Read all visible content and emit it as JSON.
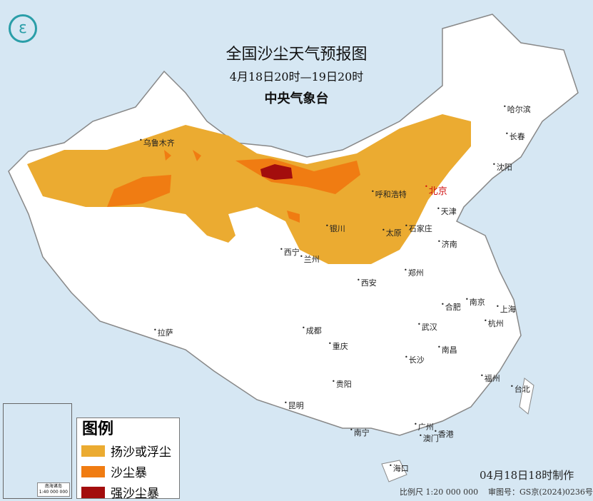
{
  "header": {
    "title": "全国沙尘天气预报图",
    "period": "4月18日20时—19日20时",
    "issuer": "中央气象台",
    "logo": "cma-logo-icon"
  },
  "cities": {
    "urumqi": "乌鲁木齐",
    "harbin": "哈尔滨",
    "changchun": "长春",
    "shenyang": "沈阳",
    "hohhot": "呼和浩特",
    "beijing": "北京",
    "tianjin": "天津",
    "yinchuan": "银川",
    "taiyuan": "太原",
    "shijiazhuang": "石家庄",
    "jinan": "济南",
    "xining": "西宁",
    "lanzhou": "兰州",
    "xian": "西安",
    "zhengzhou": "郑州",
    "hefei": "合肥",
    "nanjing": "南京",
    "shanghai": "上海",
    "hangzhou": "杭州",
    "lhasa": "拉萨",
    "chengdu": "成都",
    "wuhan": "武汉",
    "chongqing": "重庆",
    "changsha": "长沙",
    "nanchang": "南昌",
    "guiyang": "贵阳",
    "fuzhou": "福州",
    "taipei": "台北",
    "kunming": "昆明",
    "nanning": "南宁",
    "guangzhou": "广州",
    "macau": "澳门",
    "hongkong": "香港",
    "haikou": "海口"
  },
  "legend": {
    "title": "图例",
    "items": [
      {
        "label": "扬沙或浮尘",
        "color": "#ebab31"
      },
      {
        "label": "沙尘暴",
        "color": "#f07c12"
      },
      {
        "label": "强沙尘暴",
        "color": "#a30d0d"
      }
    ]
  },
  "inset": {
    "label": "南海诸岛",
    "scale": "1:40 000 000"
  },
  "footer": {
    "made": "04月18日18时制作",
    "scale": "比例尺 1:20 000 000",
    "approval": "审图号：GS京(2024)0236号"
  },
  "colors": {
    "sea": "#d6e7f3",
    "land": "#ffffff",
    "beijing": "#d01010"
  }
}
